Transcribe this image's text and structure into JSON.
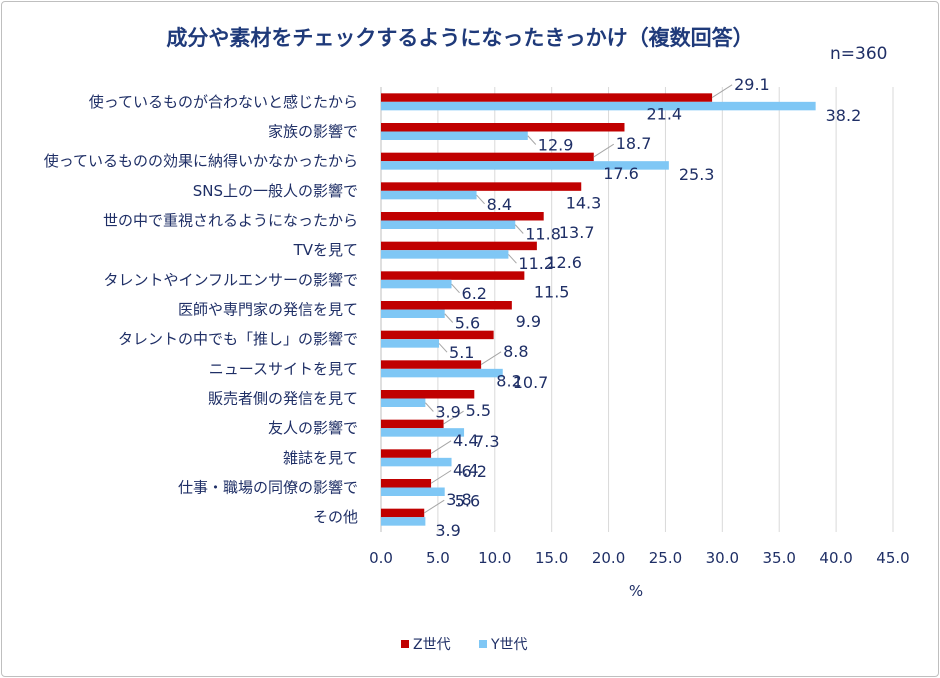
{
  "chart_data": {
    "type": "bar",
    "orientation": "horizontal",
    "title": "成分や素材をチェックするようになったきっかけ（複数回答）",
    "note": "n=360",
    "xlabel": "%",
    "ylabel": "",
    "xlim": [
      0,
      45
    ],
    "xticks": [
      "0.0",
      "5.0",
      "10.0",
      "15.0",
      "20.0",
      "25.0",
      "30.0",
      "35.0",
      "40.0",
      "45.0"
    ],
    "grid": true,
    "legend_position": "bottom",
    "categories": [
      "使っているものが合わないと感じたから",
      "家族の影響で",
      "使っているものの効果に納得いかなかったから",
      "SNS上の一般人の影響で",
      "世の中で重視されるようになったから",
      "TVを見て",
      "タレントやインフルエンサーの影響で",
      "医師や専門家の発信を見て",
      "タレントの中でも「推し」の影響で",
      "ニュースサイトを見て",
      "販売者側の発信を見て",
      "友人の影響で",
      "雑誌を見て",
      "仕事・職場の同僚の影響で",
      "その他"
    ],
    "series": [
      {
        "name": "Z世代",
        "color": "#c00000",
        "values": [
          29.1,
          21.4,
          18.7,
          17.6,
          14.3,
          13.7,
          12.6,
          11.5,
          9.9,
          8.8,
          8.2,
          5.5,
          4.4,
          4.4,
          3.8
        ]
      },
      {
        "name": "Y世代",
        "color": "#7fc7f5",
        "values": [
          38.2,
          12.9,
          25.3,
          8.4,
          11.8,
          11.2,
          6.2,
          5.6,
          5.1,
          10.7,
          3.9,
          7.3,
          6.2,
          5.6,
          3.9
        ]
      }
    ]
  }
}
